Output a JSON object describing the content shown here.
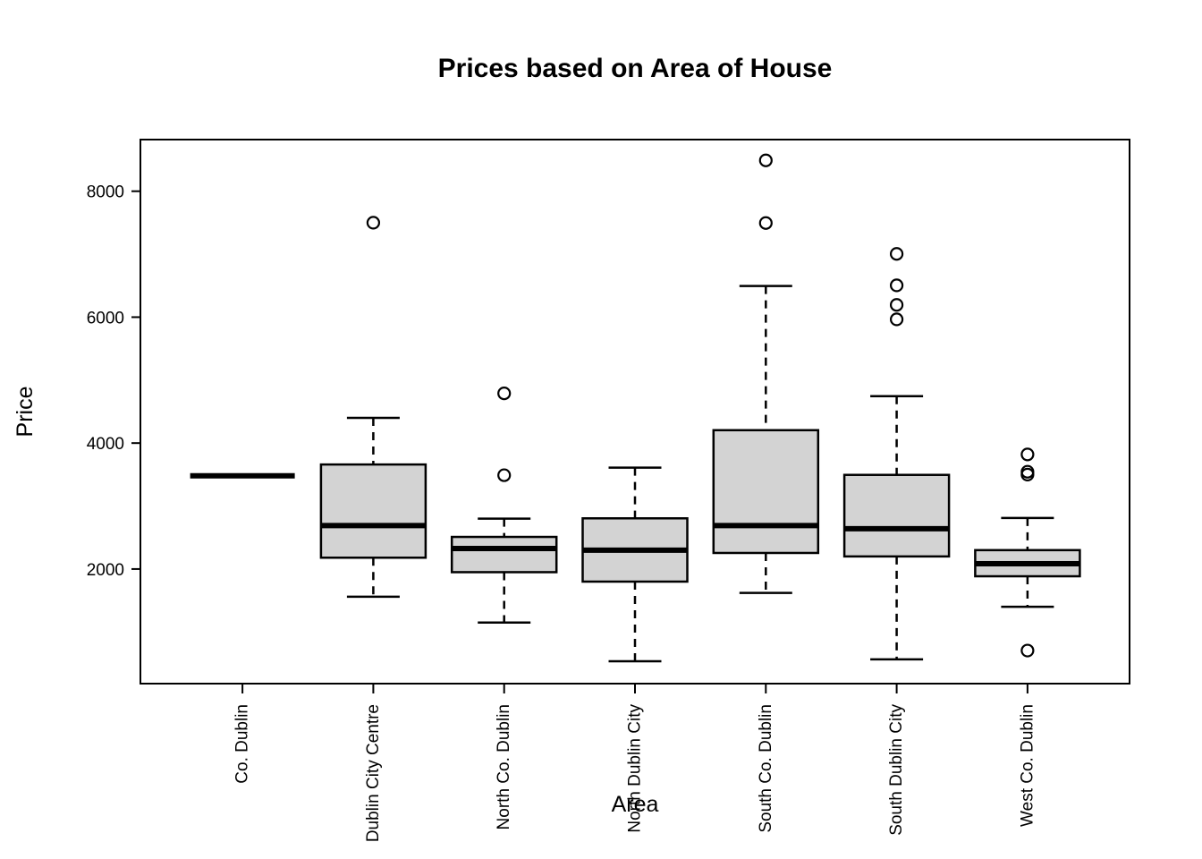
{
  "page": {
    "background": "#ffffff",
    "foreground": "#000000"
  },
  "chart_data": {
    "type": "boxplot",
    "title": "Prices based on Area of House",
    "xlabel": "Area",
    "ylabel": "Price",
    "grid": false,
    "legend": false,
    "box_fill": "#d3d3d3",
    "box_stroke": "#000000",
    "y_ticks": [
      2000,
      4000,
      6000,
      8000
    ],
    "ylim": [
      180,
      8820
    ],
    "categories": [
      "Co. Dublin",
      "Dublin City Centre",
      "North Co. Dublin",
      "North Dublin City",
      "South Co. Dublin",
      "South Dublin City",
      "West Co. Dublin"
    ],
    "series": [
      {
        "name": "Co. Dublin",
        "low": 3480,
        "q1": 3480,
        "median": 3480,
        "q3": 3480,
        "high": 3480,
        "outliers": []
      },
      {
        "name": "Dublin City Centre",
        "low": 1560,
        "q1": 2180,
        "median": 2690,
        "q3": 3660,
        "high": 4400,
        "outliers": [
          7500
        ]
      },
      {
        "name": "North Co. Dublin",
        "low": 1150,
        "q1": 1950,
        "median": 2325,
        "q3": 2510,
        "high": 2800,
        "outliers": [
          4790,
          3490
        ]
      },
      {
        "name": "North Dublin City",
        "low": 535,
        "q1": 1800,
        "median": 2300,
        "q3": 2805,
        "high": 3610,
        "outliers": []
      },
      {
        "name": "South Co. Dublin",
        "low": 1620,
        "q1": 2255,
        "median": 2690,
        "q3": 4205,
        "high": 6495,
        "outliers": [
          8490,
          7495
        ]
      },
      {
        "name": "South Dublin City",
        "low": 565,
        "q1": 2200,
        "median": 2640,
        "q3": 3495,
        "high": 4745,
        "outliers": [
          7005,
          6505,
          6195,
          5965
        ]
      },
      {
        "name": "West Co. Dublin",
        "low": 1400,
        "q1": 1885,
        "median": 2085,
        "q3": 2300,
        "high": 2810,
        "outliers": [
          3820,
          3545,
          3500,
          705
        ]
      }
    ]
  }
}
